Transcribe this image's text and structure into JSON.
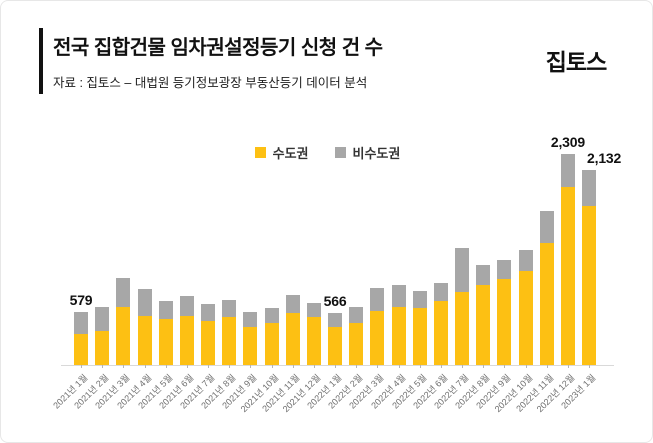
{
  "header": {
    "title": "전국 집합건물 임차권설정등기 신청 건 수",
    "source": "자료 : 집토스 – 대법원 등기정보광장 부동산등기 데이터 분석",
    "logo": "집토스",
    "accent_color": "#111111"
  },
  "chart_data": {
    "type": "bar",
    "stacked": true,
    "grid": false,
    "legend_position": "top-center",
    "ylim": [
      0,
      2450
    ],
    "categories": [
      "2021년 1월",
      "2021년 2월",
      "2021년 3월",
      "2021년 4월",
      "2021년 5월",
      "2021년 6월",
      "2021년 7월",
      "2021년 8월",
      "2021년 9월",
      "2021년 10월",
      "2021년 11월",
      "2021년 12월",
      "2022년 1월",
      "2022년 2월",
      "2022년 3월",
      "2022년 4월",
      "2022년 5월",
      "2022년 6월",
      "2022년 7월",
      "2022년 8월",
      "2022년 9월",
      "2022년 10월",
      "2022년 11월",
      "2022년 12월",
      "2023년 1월"
    ],
    "series": [
      {
        "name": "수도권",
        "color": "#FDC013",
        "values": [
          340,
          375,
          630,
          540,
          505,
          540,
          485,
          520,
          420,
          465,
          565,
          520,
          420,
          465,
          595,
          635,
          620,
          700,
          800,
          880,
          940,
          1025,
          1330,
          1945,
          1735
        ]
      },
      {
        "name": "비수도권",
        "color": "#A7A7A7",
        "values": [
          239,
          255,
          320,
          290,
          200,
          215,
          180,
          190,
          162,
          155,
          200,
          155,
          146,
          170,
          250,
          235,
          190,
          195,
          485,
          215,
          210,
          230,
          360,
          364,
          397
        ]
      }
    ],
    "annotations": [
      {
        "category": "2021년 1월",
        "text": "579"
      },
      {
        "category": "2022년 1월",
        "text": "566"
      },
      {
        "category": "2022년 12월",
        "text": "2,309"
      },
      {
        "category": "2023년 1월",
        "text": "2,132"
      }
    ]
  }
}
